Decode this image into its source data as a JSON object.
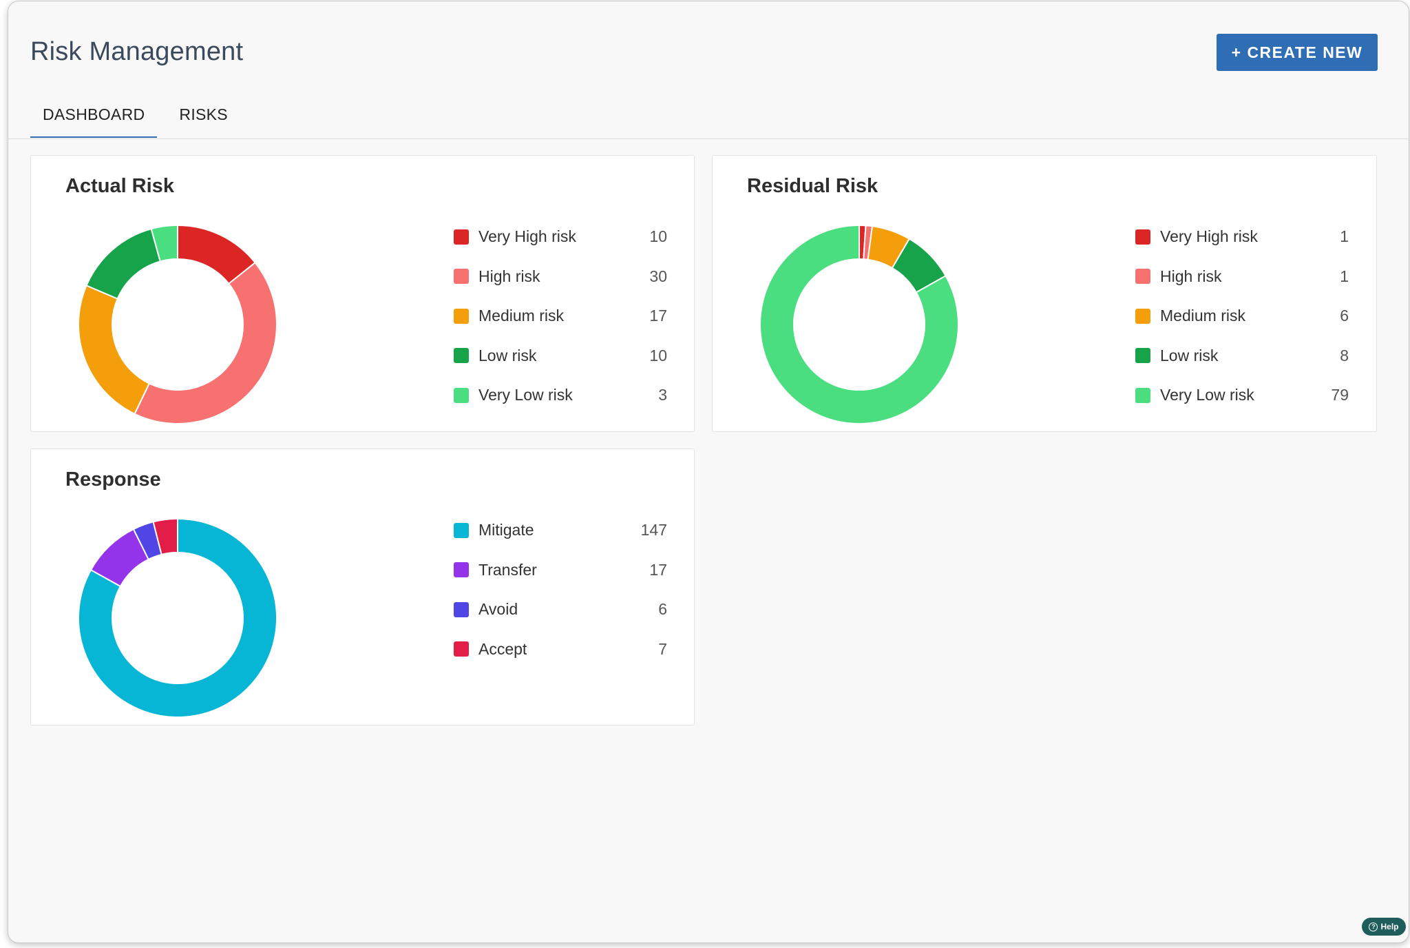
{
  "header": {
    "title": "Risk Management",
    "create_button": "+ CREATE NEW"
  },
  "tabs": [
    {
      "label": "DASHBOARD",
      "active": true
    },
    {
      "label": "RISKS",
      "active": false
    }
  ],
  "cards": {
    "actual": {
      "title": "Actual Risk"
    },
    "residual": {
      "title": "Residual Risk"
    },
    "response": {
      "title": "Response"
    }
  },
  "help": {
    "label": "Help",
    "icon": "question-circle-icon"
  },
  "chart_data": [
    {
      "type": "pie",
      "title": "Actual Risk",
      "donut": true,
      "legend_position": "right",
      "categories": [
        "Very High risk",
        "High risk",
        "Medium risk",
        "Low risk",
        "Very Low risk"
      ],
      "values": [
        10,
        30,
        17,
        10,
        3
      ],
      "colors": [
        "#dc2626",
        "#f87171",
        "#f59e0b",
        "#16a34a",
        "#4ade80"
      ]
    },
    {
      "type": "pie",
      "title": "Residual Risk",
      "donut": true,
      "legend_position": "right",
      "categories": [
        "Very High risk",
        "High risk",
        "Medium risk",
        "Low risk",
        "Very Low risk"
      ],
      "values": [
        1,
        1,
        6,
        8,
        79
      ],
      "colors": [
        "#dc2626",
        "#f87171",
        "#f59e0b",
        "#16a34a",
        "#4ade80"
      ]
    },
    {
      "type": "pie",
      "title": "Response",
      "donut": true,
      "legend_position": "right",
      "categories": [
        "Mitigate",
        "Transfer",
        "Avoid",
        "Accept"
      ],
      "values": [
        147,
        17,
        6,
        7
      ],
      "colors": [
        "#06b6d4",
        "#9333ea",
        "#4f46e5",
        "#e11d48"
      ]
    }
  ]
}
